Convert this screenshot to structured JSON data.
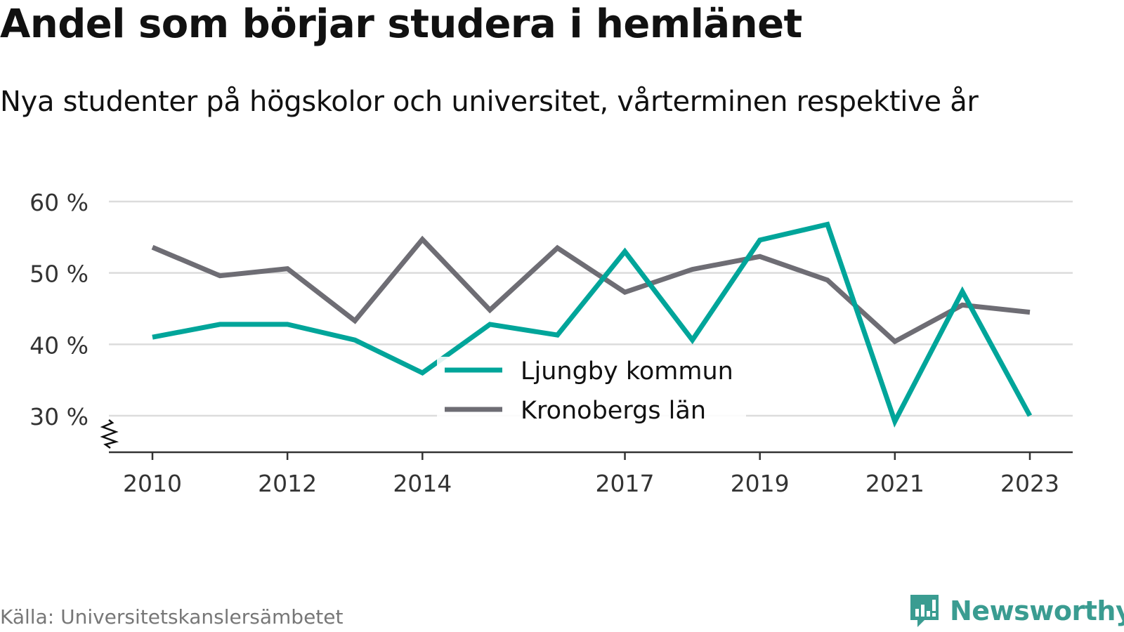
{
  "title": "Andel som börjar studera i hemlänet",
  "subtitle": "Nya studenter på högskolor och universitet, vårterminen respektive år",
  "source": "Källa: Universitetskanslersämbetet",
  "brand": {
    "name": "Newsworthy",
    "icon": "newsworthy-logo-icon",
    "color": "#3a9c91"
  },
  "chart_data": {
    "type": "line",
    "title": "Andel som börjar studera i hemlänet",
    "subtitle": "Nya studenter på högskolor och universitet, vårterminen respektive år",
    "x": [
      2010,
      2011,
      2012,
      2013,
      2014,
      2015,
      2016,
      2017,
      2018,
      2019,
      2020,
      2021,
      2022,
      2023
    ],
    "x_tick_values": [
      2010,
      2012,
      2014,
      2017,
      2019,
      2021,
      2023
    ],
    "x_tick_labels": [
      "2010",
      "2012",
      "2014",
      "2017",
      "2019",
      "2021",
      "2023"
    ],
    "y_ticks": [
      30,
      40,
      50,
      60
    ],
    "y_tick_labels": [
      "30 %",
      "40 %",
      "50 %",
      "60 %"
    ],
    "ylim": [
      25,
      62
    ],
    "y_axis_break": true,
    "grid": true,
    "legend_position": "center",
    "series": [
      {
        "name": "Ljungby kommun",
        "color": "#00a59a",
        "values": [
          41.0,
          42.8,
          42.8,
          40.6,
          36.0,
          42.8,
          41.3,
          53.0,
          40.6,
          54.6,
          56.8,
          29.2,
          47.4,
          30.0
        ]
      },
      {
        "name": "Kronobergs län",
        "color": "#6e6d74",
        "values": [
          53.6,
          49.6,
          50.6,
          43.3,
          54.7,
          44.8,
          53.5,
          47.3,
          50.5,
          52.3,
          49.0,
          40.4,
          45.5,
          44.5
        ]
      }
    ]
  }
}
